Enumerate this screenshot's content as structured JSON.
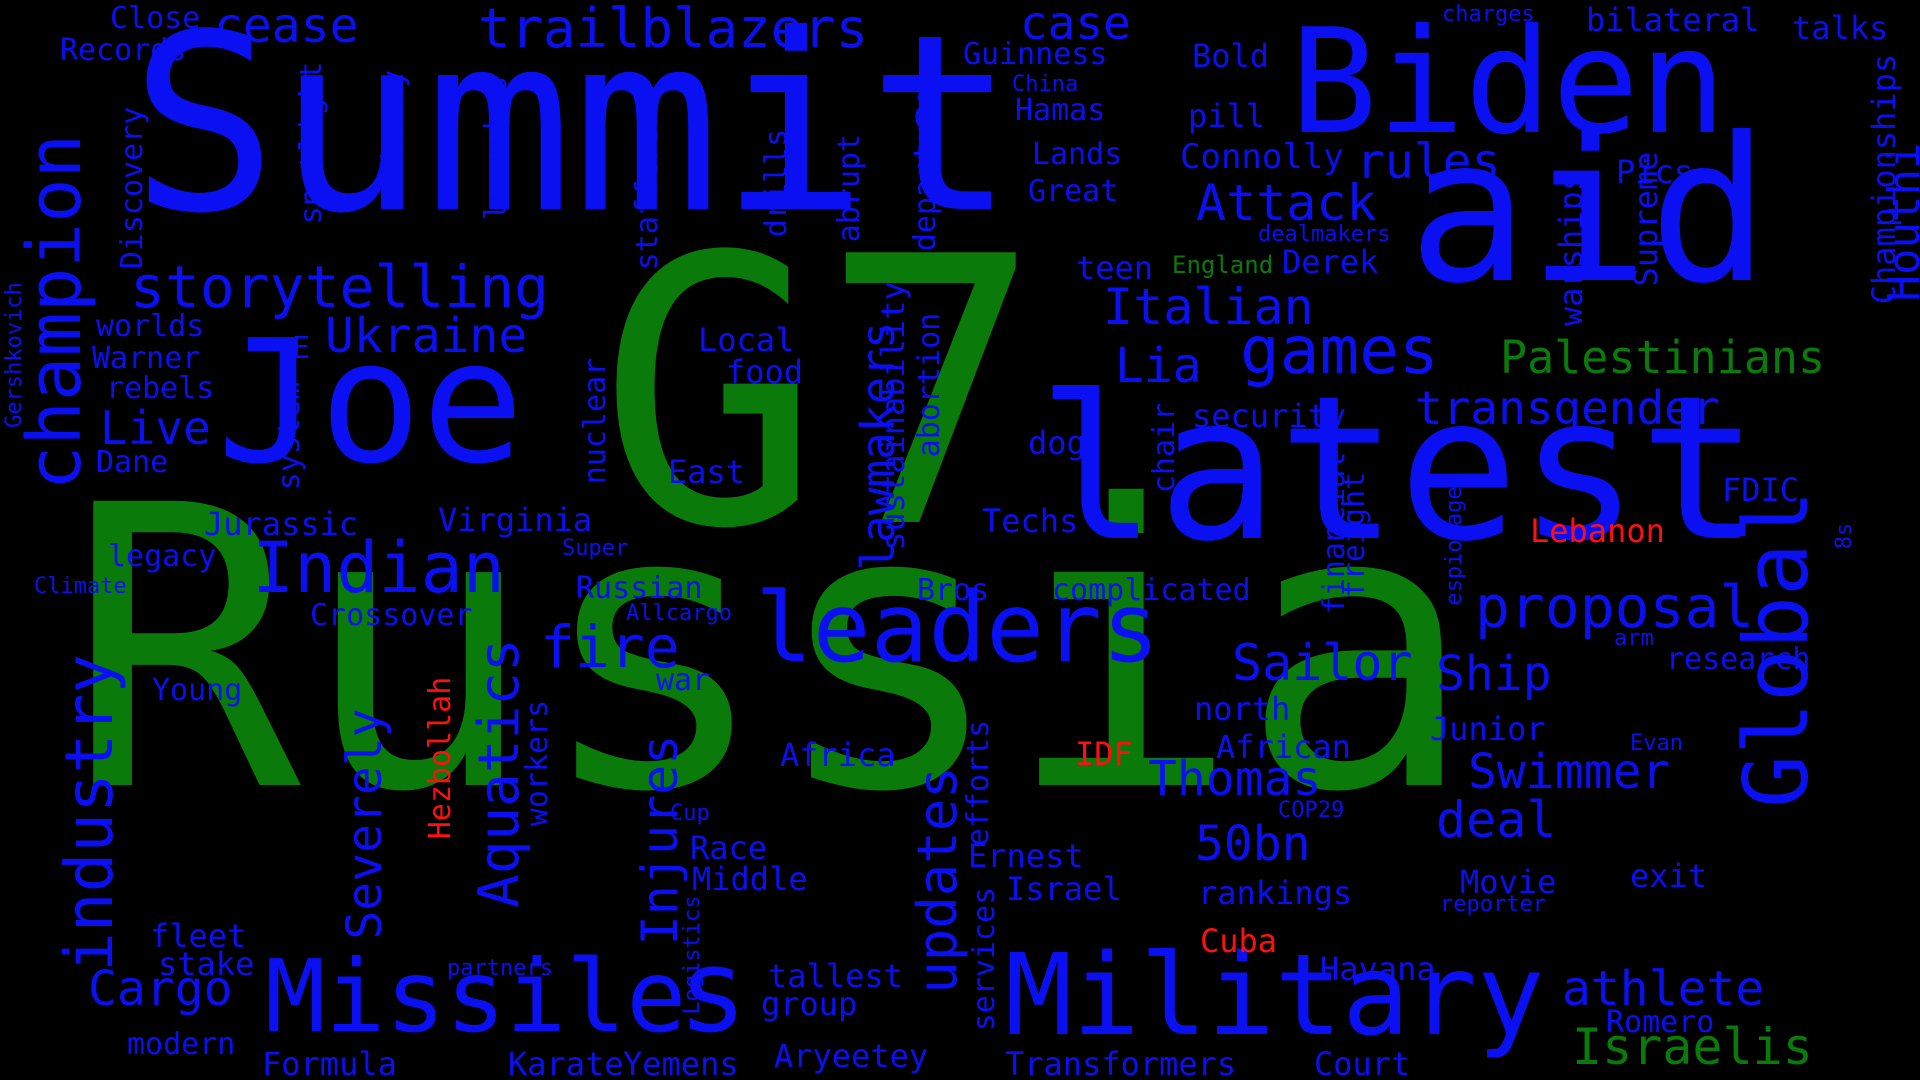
{
  "colors": {
    "background": "#000000",
    "blue": "#0b10f2",
    "green": "#0a7a0a",
    "red": "#ff1010"
  },
  "words": {
    "russia": "Russia",
    "g7": "G7",
    "summit": "Summit",
    "latest": "latest",
    "joe": "Joe",
    "aid": "aid",
    "biden": "Biden",
    "missile": "Missile",
    "military": "Military",
    "leaders": "leaders",
    "champion": "champion",
    "industry": "industry",
    "global": "Global",
    "s": "s",
    "indian": "Indian",
    "proposal": "proposal",
    "games": "games",
    "palestinians": "Palestinians",
    "storytelling": "storytelling",
    "trailblazers": "trailblazers",
    "cease": "cease",
    "case": "case",
    "attack": "Attack",
    "rules": "rules",
    "italian": "Italian",
    "lia": "Lia",
    "transgender": "transgender",
    "ukraine": "Ukraine",
    "live": "Live",
    "fire": "fire",
    "sailor": "Sailor",
    "ship": "Ship",
    "swimmer": "Swimmer",
    "thomas": "Thomas",
    "deal": "deal",
    "fifty_bn": "50bn",
    "athlete": "athlete",
    "israelis": "Israelis",
    "cargo": "Cargo",
    "aquatics": "Aquatics",
    "severely": "Severely",
    "injures": "Injures",
    "updates": "updates",
    "lawmakers": "lawmakers",
    "houthi": "Houthi",
    "sanctions": "sanctions",
    "hezbollah": "Hezbollah",
    "lebanon": "Lebanon",
    "idf": "IDF",
    "cuba": "Cuba",
    "england": "England",
    "close": "Close",
    "records": "Records",
    "discovery": "Discovery",
    "spotlight": "spotlight",
    "liberty": "Liberty",
    "launches": "launches",
    "staffers": "staffers",
    "drills": "drills",
    "abrupt": "abrupt",
    "departure": "departure",
    "g_small": "G",
    "guinness": "Guinness",
    "china": "China",
    "hamas": "Hamas",
    "lands": "Lands",
    "great": "Great",
    "bold": "Bold",
    "pill": "pill",
    "connolly": "Connolly",
    "teen": "teen",
    "derek": "Derek",
    "dealmakers": "dealmakers",
    "charges": "charges",
    "bilateral": "bilateral",
    "talks": "talks",
    "warships": "warships",
    "supreme": "Supreme",
    "pics": "Pics",
    "championships": "Championships",
    "worlds": "worlds",
    "warner": "Warner",
    "rebels": "rebels",
    "dane": "Dane",
    "e": "E",
    "system": "system",
    "gershkovich": "Gershkovich",
    "nuclear": "nuclear",
    "local": "Local",
    "food": "food",
    "sustainability": "sustainability",
    "abortion": "abortion",
    "dog": "dog",
    "chair": "chair",
    "security": "security",
    "financial": "financial",
    "freight": "freight",
    "u": "U",
    "espionage": "espionage",
    "fdic": "FDIC",
    "jurassic": "Jurassic",
    "virginia": "Virginia",
    "east": "East",
    "techs": "Techs",
    "legacy": "legacy",
    "super": "Super",
    "russian": "Russian",
    "bros": "Bros",
    "complicated": "complicated",
    "climate": "Climate",
    "allcargo": "Allcargo",
    "crossover": "Crossover",
    "eights": "8s",
    "arm": "arm",
    "research": "research",
    "young": "Young",
    "war": "war",
    "north": "north",
    "junior": "Junior",
    "africa": "Africa",
    "african": "African",
    "evan": "Evan",
    "workers": "workers",
    "efforts": "efforts",
    "cup": "Cup",
    "cop29": "COP29",
    "race": "Race",
    "ernest": "Ernest",
    "middle": "Middle",
    "israel": "Israel",
    "rankings": "rankings",
    "movie": "Movie",
    "exit": "exit",
    "reporter": "reporter",
    "fleet": "fleet",
    "stake": "stake",
    "partners": "partners",
    "logistics": "Logistics",
    "tallest": "tallest",
    "services": "services",
    "havana": "Havana",
    "romero": "Romero",
    "modern": "modern",
    "group": "group",
    "formula": "Formula",
    "karate": "Karate",
    "yemens": "Yemens",
    "aryeetey": "Aryeetey",
    "transformers": "Transformers",
    "court": "Court"
  }
}
